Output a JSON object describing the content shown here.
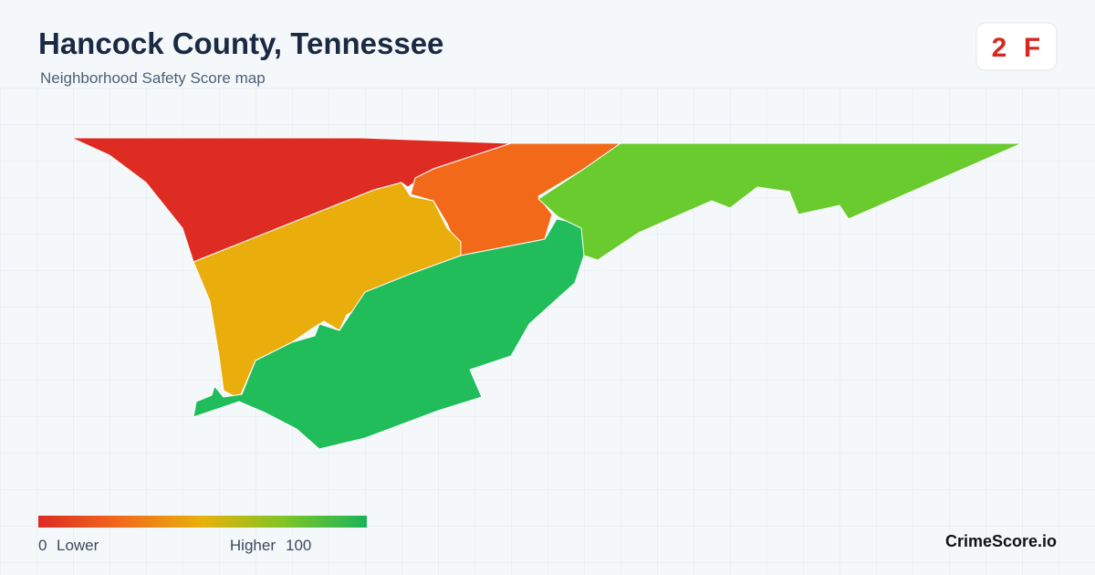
{
  "header": {
    "title": "Hancock County, Tennessee",
    "subtitle": "Neighborhood Safety Score map"
  },
  "score": {
    "value": "2",
    "grade": "F"
  },
  "legend": {
    "min": "0",
    "min_label": "Lower",
    "max_label": "Higher",
    "max": "100"
  },
  "brand": "CrimeScore.io"
}
